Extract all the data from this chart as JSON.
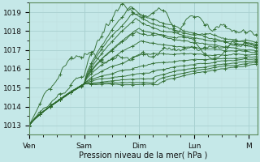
{
  "xlabel": "Pression niveau de la mer( hPa )",
  "background_color": "#c5e8e8",
  "line_color": "#2d6a2d",
  "grid_major_color": "#a8d0d0",
  "grid_minor_color": "#b8d8d8",
  "ylim": [
    1012.5,
    1019.5
  ],
  "xlim": [
    0.0,
    4.15
  ],
  "xtick_positions": [
    0,
    1,
    2,
    3,
    4
  ],
  "xtick_labels": [
    "Ven",
    "Sam",
    "Dim",
    "Lun",
    "M"
  ],
  "ytick_positions": [
    1013,
    1014,
    1015,
    1016,
    1017,
    1018,
    1019
  ]
}
